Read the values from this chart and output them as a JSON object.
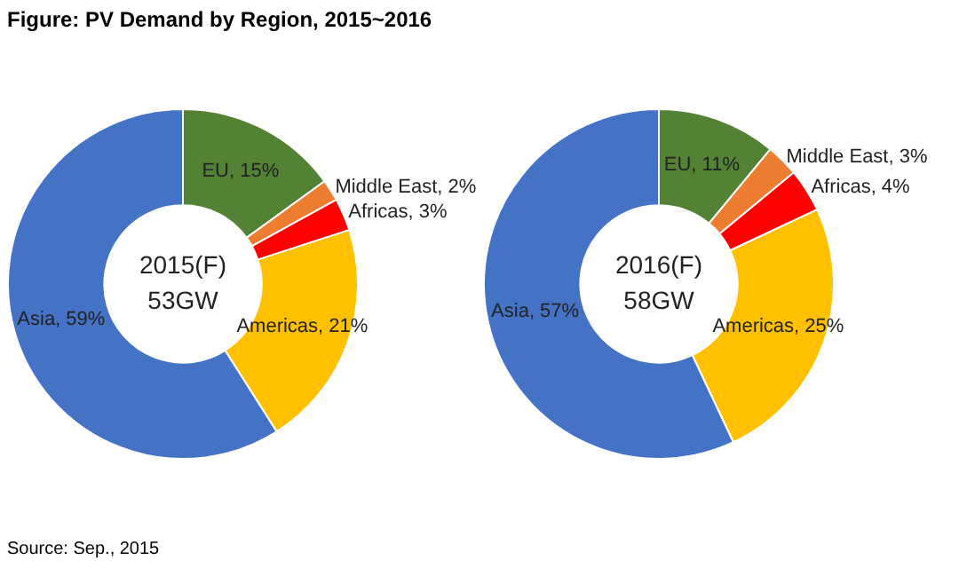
{
  "chart_data": [
    {
      "type": "donut",
      "title": "Figure: PV Demand by Region, 2015~2016",
      "categories": [
        "EU",
        "Middle East",
        "Africas",
        "Americas",
        "Asia"
      ],
      "values": [
        15,
        2,
        3,
        21,
        59
      ],
      "colors": [
        "#548235",
        "#ed7d31",
        "#ff0000",
        "#ffc000",
        "#4472c4"
      ],
      "value_labels": [
        "15%",
        "2%",
        "3%",
        "21%",
        "59%"
      ],
      "annotations": [
        "2015(F)",
        "53GW"
      ],
      "legend": false
    },
    {
      "type": "donut",
      "categories": [
        "EU",
        "Middle East",
        "Africas",
        "Americas",
        "Asia"
      ],
      "values": [
        11,
        3,
        4,
        25,
        57
      ],
      "colors": [
        "#548235",
        "#ed7d31",
        "#ff0000",
        "#ffc000",
        "#4472c4"
      ],
      "value_labels": [
        "11%",
        "3%",
        "4%",
        "25%",
        "57%"
      ],
      "annotations": [
        "2016(F)",
        "58GW",
        "Source: Sep., 2015"
      ],
      "legend": false
    }
  ]
}
